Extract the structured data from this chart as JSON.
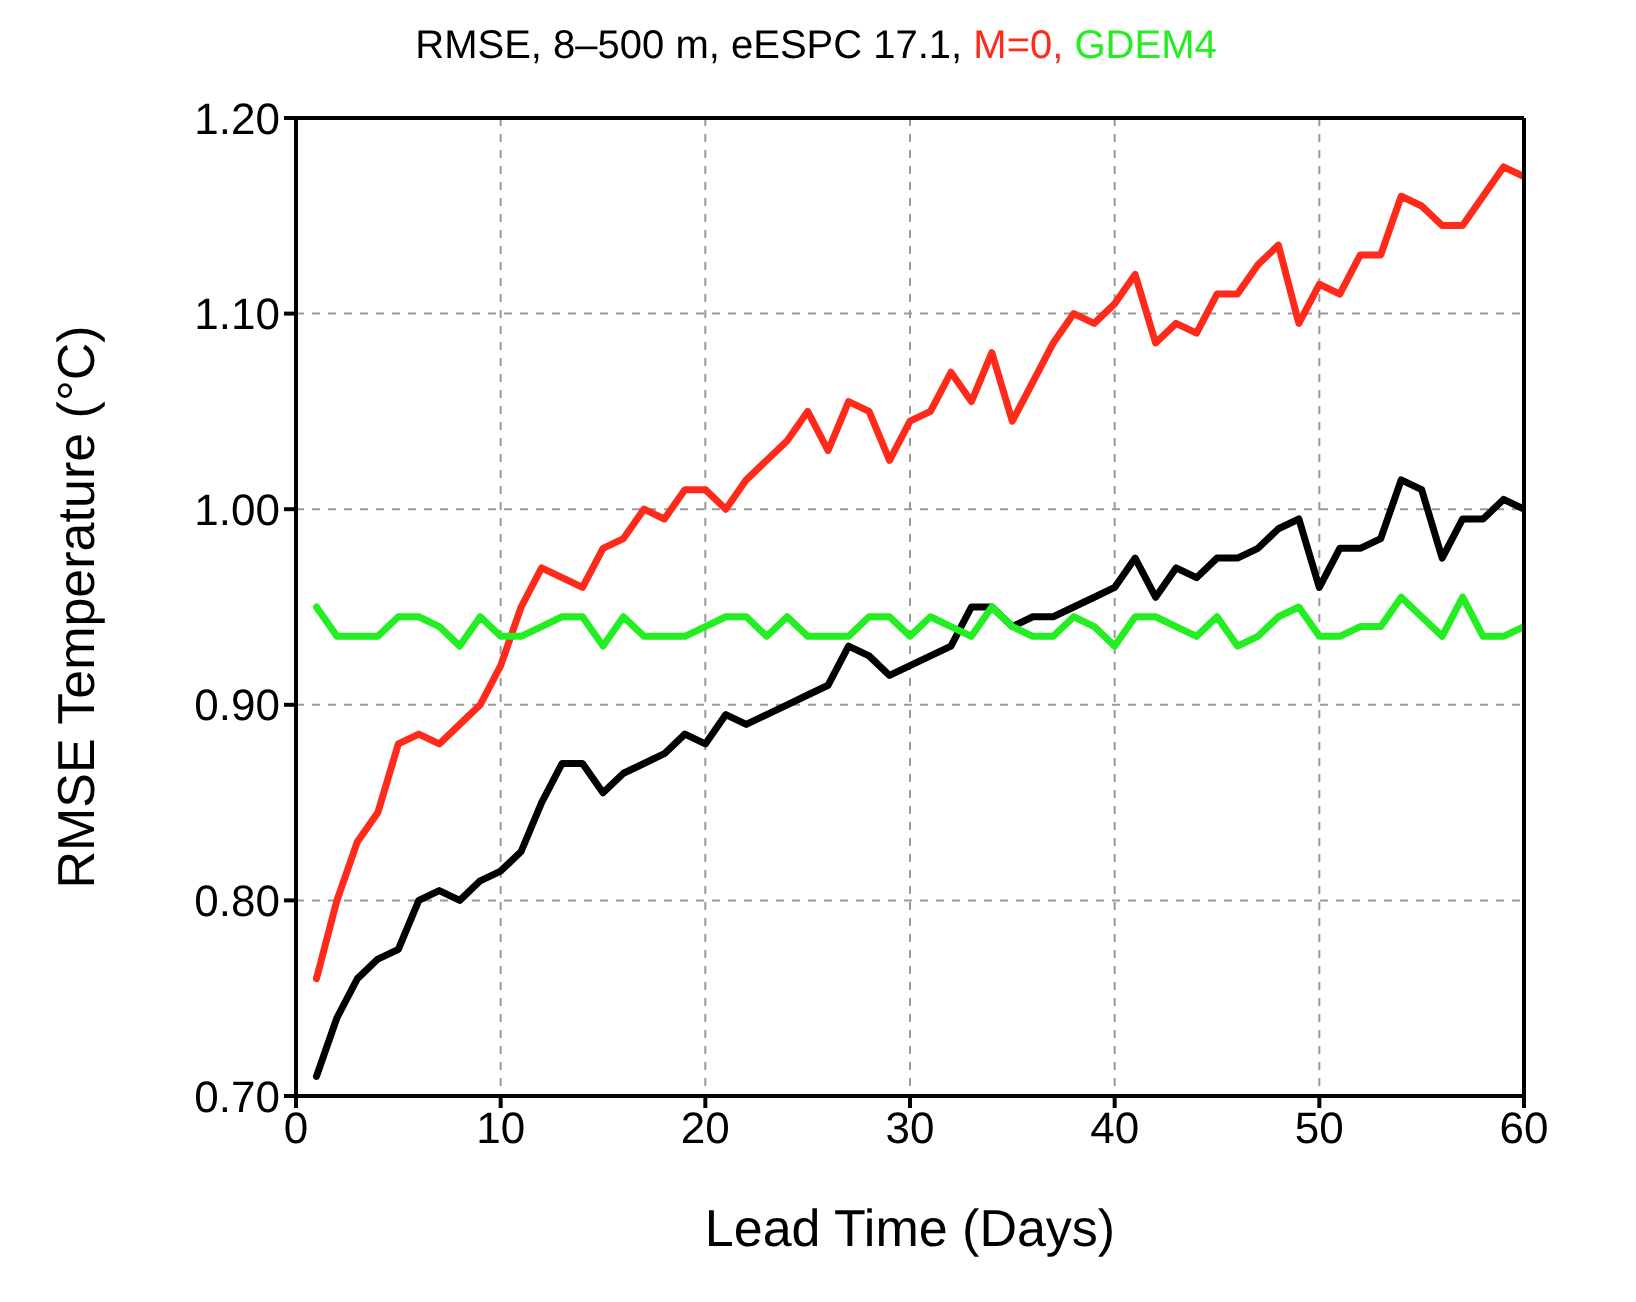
{
  "chart_data": {
    "type": "line",
    "title": "RMSE, 8–500 m,",
    "xlabel": "Lead Time (Days)",
    "ylabel": "RMSE Temperature  (°C)",
    "x": [
      1,
      2,
      3,
      4,
      5,
      6,
      7,
      8,
      9,
      10,
      11,
      12,
      13,
      14,
      15,
      16,
      17,
      18,
      19,
      20,
      21,
      22,
      23,
      24,
      25,
      26,
      27,
      28,
      29,
      30,
      31,
      32,
      33,
      34,
      35,
      36,
      37,
      38,
      39,
      40,
      41,
      42,
      43,
      44,
      45,
      46,
      47,
      48,
      49,
      50,
      51,
      52,
      53,
      54,
      55,
      56,
      57,
      58,
      59,
      60
    ],
    "series": [
      {
        "name": "eESPC 17.1,",
        "color": "#000000",
        "values": [
          0.71,
          0.74,
          0.76,
          0.77,
          0.775,
          0.8,
          0.805,
          0.8,
          0.81,
          0.815,
          0.825,
          0.85,
          0.87,
          0.87,
          0.855,
          0.865,
          0.87,
          0.875,
          0.885,
          0.88,
          0.895,
          0.89,
          0.895,
          0.9,
          0.905,
          0.91,
          0.93,
          0.925,
          0.915,
          0.92,
          0.925,
          0.93,
          0.95,
          0.95,
          0.94,
          0.945,
          0.945,
          0.95,
          0.955,
          0.96,
          0.975,
          0.955,
          0.97,
          0.965,
          0.975,
          0.975,
          0.98,
          0.99,
          0.995,
          0.96,
          0.98,
          0.98,
          0.985,
          1.015,
          1.01,
          0.975,
          0.995,
          0.995,
          1.005,
          1.0
        ]
      },
      {
        "name": "M=0,",
        "color": "#ff2a1a",
        "values": [
          0.76,
          0.8,
          0.83,
          0.845,
          0.88,
          0.885,
          0.88,
          0.89,
          0.9,
          0.92,
          0.95,
          0.97,
          0.965,
          0.96,
          0.98,
          0.985,
          1.0,
          0.995,
          1.01,
          1.01,
          1.0,
          1.015,
          1.025,
          1.035,
          1.05,
          1.03,
          1.055,
          1.05,
          1.025,
          1.045,
          1.05,
          1.07,
          1.055,
          1.08,
          1.045,
          1.065,
          1.085,
          1.1,
          1.095,
          1.105,
          1.12,
          1.085,
          1.095,
          1.09,
          1.11,
          1.11,
          1.125,
          1.135,
          1.095,
          1.115,
          1.11,
          1.13,
          1.13,
          1.16,
          1.155,
          1.145,
          1.145,
          1.16,
          1.175,
          1.17
        ]
      },
      {
        "name": "GDEM4",
        "color": "#22ee22",
        "values": [
          0.95,
          0.935,
          0.935,
          0.935,
          0.945,
          0.945,
          0.94,
          0.93,
          0.945,
          0.935,
          0.935,
          0.94,
          0.945,
          0.945,
          0.93,
          0.945,
          0.935,
          0.935,
          0.935,
          0.94,
          0.945,
          0.945,
          0.935,
          0.945,
          0.935,
          0.935,
          0.935,
          0.945,
          0.945,
          0.935,
          0.945,
          0.94,
          0.935,
          0.95,
          0.94,
          0.935,
          0.935,
          0.945,
          0.94,
          0.93,
          0.945,
          0.945,
          0.94,
          0.935,
          0.945,
          0.93,
          0.935,
          0.945,
          0.95,
          0.935,
          0.935,
          0.94,
          0.94,
          0.955,
          0.945,
          0.935,
          0.955,
          0.935,
          0.935,
          0.94
        ]
      }
    ],
    "xlim": [
      0,
      60
    ],
    "xticks": [
      0,
      10,
      20,
      30,
      40,
      50,
      60
    ],
    "ylim": [
      0.7,
      1.2
    ],
    "yticks": [
      {
        "value": 0.7,
        "label": "0.70"
      },
      {
        "value": 0.8,
        "label": "0.80"
      },
      {
        "value": 0.9,
        "label": "0.90"
      },
      {
        "value": 1.0,
        "label": "1.00"
      },
      {
        "value": 1.1,
        "label": "1.10"
      },
      {
        "value": 1.2,
        "label": "1.20"
      }
    ],
    "grid": true,
    "marker": "none",
    "line_style": "solid"
  }
}
